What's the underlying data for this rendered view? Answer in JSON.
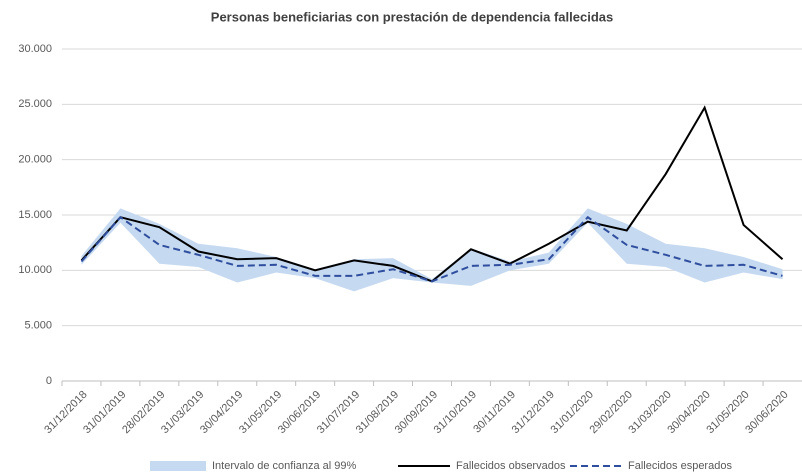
{
  "chart_data": {
    "type": "line",
    "title": "Personas beneficiarias con prestación de dependencia fallecidas",
    "categories": [
      "31/12/2018",
      "31/01/2019",
      "28/02/2019",
      "31/03/2019",
      "30/04/2019",
      "31/05/2019",
      "30/06/2019",
      "31/07/2019",
      "31/08/2019",
      "30/09/2019",
      "31/10/2019",
      "30/11/2019",
      "31/12/2019",
      "31/01/2020",
      "29/02/2020",
      "31/03/2020",
      "30/04/2020",
      "31/05/2020",
      "30/06/2020"
    ],
    "band": {
      "name": "Intervalo de confianza al 99%",
      "color": "#c5d9f1",
      "lower": [
        10500,
        14300,
        10600,
        10300,
        8900,
        9800,
        9300,
        8100,
        9300,
        8900,
        8600,
        10000,
        10600,
        14300,
        10600,
        10300,
        8900,
        9800,
        9200
      ],
      "upper": [
        11300,
        15600,
        14200,
        12400,
        12000,
        11200,
        10100,
        11000,
        11100,
        9200,
        12000,
        10800,
        11600,
        15600,
        14200,
        12400,
        12000,
        11200,
        10100
      ]
    },
    "series": [
      {
        "name": "Fallecidos observados",
        "color": "#000000",
        "dash": false,
        "values": [
          10900,
          14800,
          13900,
          11700,
          11000,
          11100,
          10000,
          10900,
          10400,
          9000,
          11900,
          10600,
          12400,
          14400,
          13600,
          18700,
          24700,
          14100,
          11000
        ]
      },
      {
        "name": "Fallecidos esperados",
        "color": "#2f4e9e",
        "dash": true,
        "values": [
          10800,
          14800,
          12300,
          11400,
          10400,
          10500,
          9500,
          9500,
          10100,
          9000,
          10400,
          10500,
          11000,
          14800,
          12300,
          11400,
          10400,
          10500,
          9500
        ]
      }
    ],
    "ylim": [
      0,
      30000
    ],
    "yticks": [
      0,
      {
        "value": 5000,
        "label": "5.000"
      },
      {
        "value": 10000,
        "label": "10.000"
      },
      {
        "value": 15000,
        "label": "15.000"
      },
      {
        "value": 20000,
        "label": "20.000"
      },
      {
        "value": 25000,
        "label": "25.000"
      },
      {
        "value": 30000,
        "label": "30.000"
      }
    ],
    "grid": true,
    "legend": "bottom"
  }
}
